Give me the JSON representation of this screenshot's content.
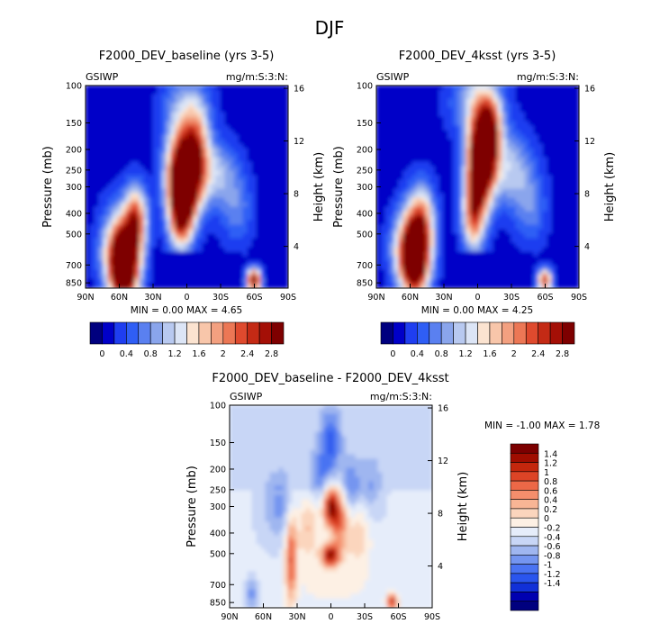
{
  "figure": {
    "title": "DJF"
  },
  "chart_data": [
    {
      "type": "heatmap",
      "title": "F2000_DEV_baseline (yrs 3-5)",
      "variable_label": "GSIWP",
      "units_label": "mg/m:S:3:N:",
      "xlabel": "",
      "ylabel": "Pressure (mb)",
      "y2label": "Height (km)",
      "x_tick_labels": [
        "90N",
        "60N",
        "30N",
        "0",
        "30S",
        "60S",
        "90S"
      ],
      "y_tick_labels": [
        "100",
        "150",
        "200",
        "250",
        "300",
        "400",
        "500",
        "700",
        "850"
      ],
      "y2_tick_labels": [
        "16",
        "12",
        "8",
        "4"
      ],
      "stats_text": "MIN =    0.00   MAX =     4.65",
      "min": 0.0,
      "max": 4.65,
      "colorbar_labels": [
        "0",
        "0.4",
        "0.8",
        "1.2",
        "1.6",
        "2",
        "2.4",
        "2.8"
      ],
      "colorbar_orientation": "horizontal",
      "features": [
        {
          "label": "tropical upper maximum",
          "lat": 0,
          "pressure_mb": 270,
          "value": 4.6
        },
        {
          "label": "NH midlatitude lower maximum",
          "lat": 55,
          "pressure_mb": 750,
          "value": 3.6
        },
        {
          "label": "SH high-latitude maximum",
          "lat": -60,
          "pressure_mb": 830,
          "value": 3.0
        }
      ]
    },
    {
      "type": "heatmap",
      "title": "F2000_DEV_4ksst (yrs 3-5)",
      "variable_label": "GSIWP",
      "units_label": "mg/m:S:3:N:",
      "xlabel": "",
      "ylabel": "Pressure (mb)",
      "y2label": "Height (km)",
      "x_tick_labels": [
        "90N",
        "60N",
        "30N",
        "0",
        "30S",
        "60S",
        "90S"
      ],
      "y_tick_labels": [
        "100",
        "150",
        "200",
        "250",
        "300",
        "400",
        "500",
        "700",
        "850"
      ],
      "y2_tick_labels": [
        "16",
        "12",
        "8",
        "4"
      ],
      "stats_text": "MIN =    0.00   MAX =     4.25",
      "min": 0.0,
      "max": 4.25,
      "colorbar_labels": [
        "0",
        "0.4",
        "0.8",
        "1.2",
        "1.6",
        "2",
        "2.4",
        "2.8"
      ],
      "colorbar_orientation": "horizontal",
      "features": [
        {
          "label": "tropical upper maximum",
          "lat": -5,
          "pressure_mb": 220,
          "value": 4.2
        },
        {
          "label": "NH midlatitude lower maximum",
          "lat": 55,
          "pressure_mb": 700,
          "value": 3.0
        },
        {
          "label": "SH high-latitude maximum",
          "lat": -60,
          "pressure_mb": 830,
          "value": 2.4
        }
      ]
    },
    {
      "type": "heatmap",
      "title": "F2000_DEV_baseline - F2000_DEV_4ksst",
      "variable_label": "GSIWP",
      "units_label": "mg/m:S:3:N:",
      "xlabel": "",
      "ylabel": "Pressure (mb)",
      "y2label": "Height (km)",
      "x_tick_labels": [
        "90N",
        "60N",
        "30N",
        "0",
        "30S",
        "60S",
        "90S"
      ],
      "y_tick_labels": [
        "100",
        "150",
        "200",
        "250",
        "300",
        "400",
        "500",
        "700",
        "850"
      ],
      "y2_tick_labels": [
        "16",
        "12",
        "8",
        "4"
      ],
      "stats_text": "MIN =   -1.00   MAX =     1.78",
      "min": -1.0,
      "max": 1.78,
      "colorbar_labels": [
        "1.4",
        "1.2",
        "1",
        "0.8",
        "0.6",
        "0.4",
        "0.2",
        "0",
        "-0.2",
        "-0.4",
        "-0.6",
        "-0.8",
        "-1",
        "-1.2",
        "-1.4"
      ],
      "colorbar_orientation": "vertical",
      "features": [
        {
          "label": "tropical positive core",
          "lat": 0,
          "pressure_mb": 300,
          "value": 1.6
        },
        {
          "label": "tropical lower positive core",
          "lat": 0,
          "pressure_mb": 500,
          "value": 1.7
        },
        {
          "label": "NH 30N positive column",
          "lat": 35,
          "pressure_mb": 500,
          "value": 1.2
        },
        {
          "label": "SH 55S lower positive",
          "lat": -55,
          "pressure_mb": 840,
          "value": 1.5
        },
        {
          "label": "upper tropical negative",
          "lat": 0,
          "pressure_mb": 150,
          "value": -0.8
        }
      ]
    }
  ]
}
